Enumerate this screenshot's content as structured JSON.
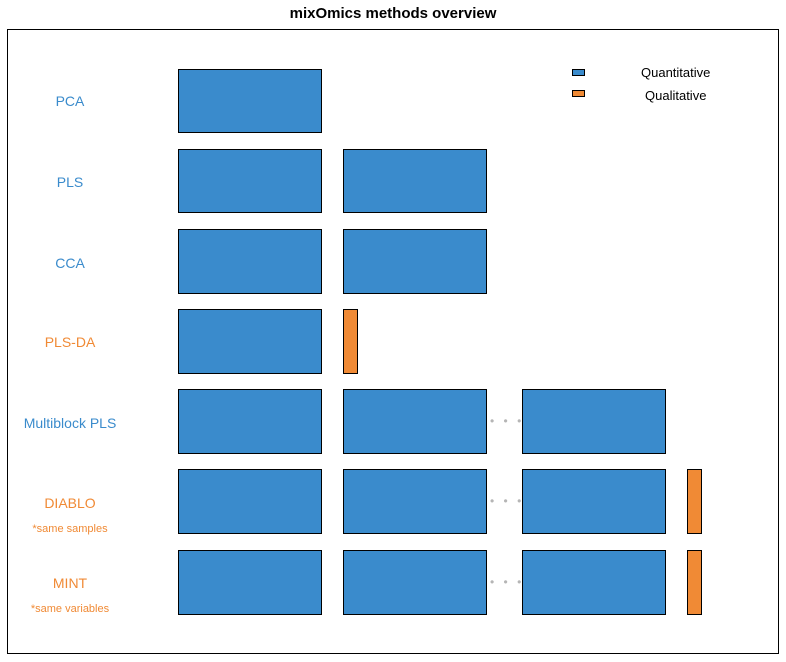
{
  "title": "mixOmics methods overview",
  "colors": {
    "quantitative": "#3a8bcc",
    "qualitative": "#f08a35"
  },
  "legend": {
    "quantitative": "Quantitative",
    "qualitative": "Qualitative"
  },
  "methods": [
    {
      "name": "PCA",
      "note": ""
    },
    {
      "name": "PLS",
      "note": ""
    },
    {
      "name": "CCA",
      "note": ""
    },
    {
      "name": "PLS-DA",
      "note": ""
    },
    {
      "name": "Multiblock PLS",
      "note": ""
    },
    {
      "name": "DIABLO",
      "note": "*same samples"
    },
    {
      "name": "MINT",
      "note": "*same variables"
    }
  ],
  "dots": "• • •"
}
